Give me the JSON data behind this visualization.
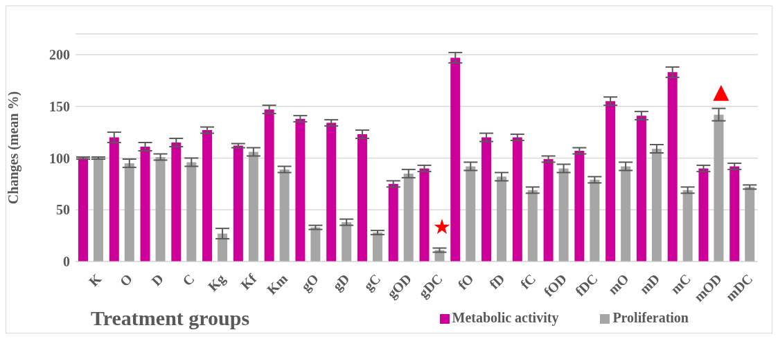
{
  "chart_data": {
    "type": "bar",
    "xlabel": "Treatment groups",
    "ylabel": "Changes (mean %)",
    "categories": [
      "K",
      "O",
      "D",
      "C",
      "Kg",
      "Kf",
      "Km",
      "gO",
      "gD",
      "gC",
      "gOD",
      "gDC",
      "fO",
      "fD",
      "fC",
      "fOD",
      "fDC",
      "mO",
      "mD",
      "mC",
      "mOD",
      "mDC"
    ],
    "series": [
      {
        "name": "Metabolic activity",
        "color": "#cc0099",
        "values": [
          100,
          120,
          111,
          115,
          127,
          112,
          147,
          138,
          134,
          123,
          75,
          90,
          197,
          120,
          120,
          99,
          107,
          155,
          141,
          183,
          90,
          92
        ],
        "errors": [
          1,
          5,
          4,
          4,
          3,
          2,
          4,
          3,
          3,
          4,
          3,
          3,
          5,
          4,
          3,
          3,
          3,
          4,
          4,
          5,
          3,
          3
        ]
      },
      {
        "name": "Proliferation",
        "color": "#a6a6a6",
        "values": [
          100,
          95,
          101,
          96,
          27,
          106,
          89,
          33,
          38,
          28,
          85,
          11,
          92,
          82,
          69,
          90,
          79,
          92,
          109,
          69,
          142,
          72
        ],
        "errors": [
          1,
          4,
          3,
          4,
          5,
          4,
          3,
          2,
          3,
          2,
          4,
          2,
          4,
          4,
          3,
          4,
          3,
          4,
          4,
          3,
          6,
          2
        ]
      }
    ],
    "ylim": [
      0,
      220
    ],
    "yticks": [
      0,
      50,
      100,
      150,
      200
    ],
    "grid": "y",
    "legend": "bottom right",
    "annotations": [
      {
        "text": "★",
        "x": "gDC",
        "y": 11
      },
      {
        "text": "▲",
        "x": "mOD",
        "y": 142
      }
    ]
  }
}
